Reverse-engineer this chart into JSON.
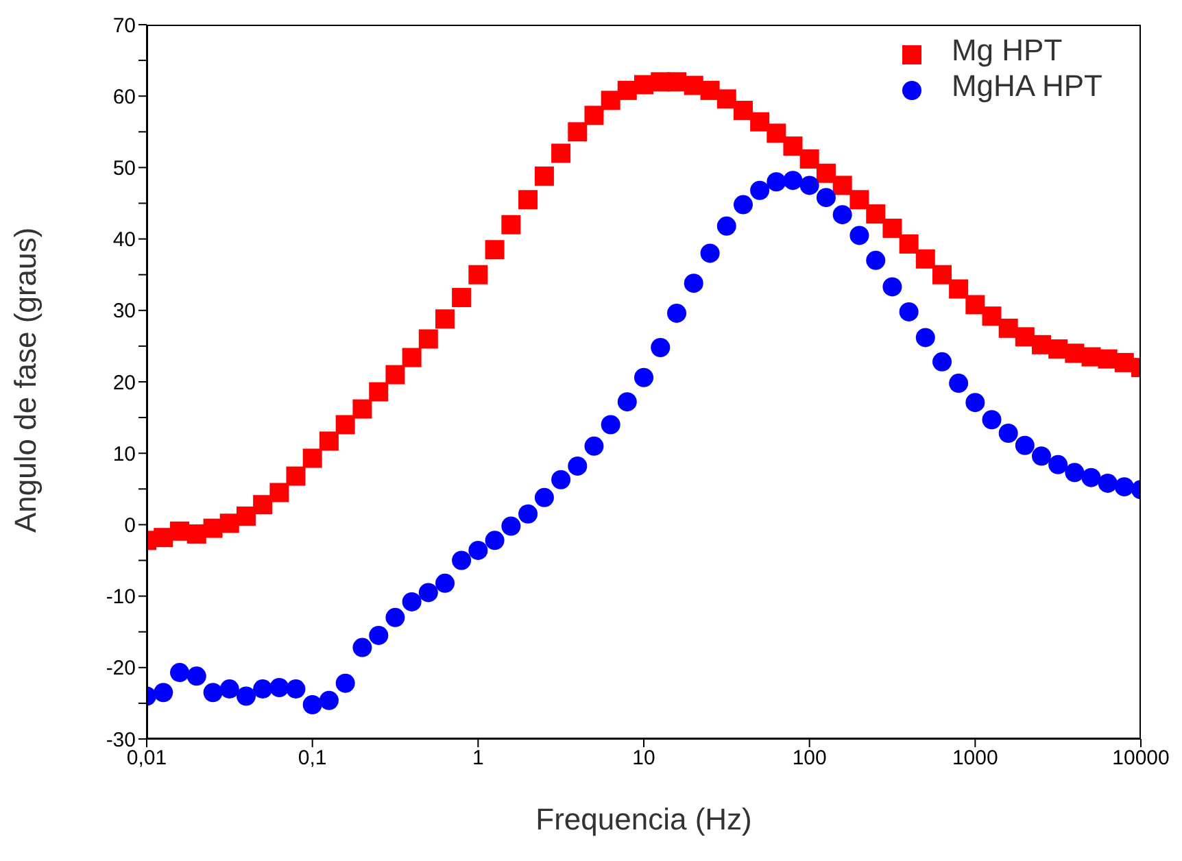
{
  "chart_data": {
    "type": "scatter",
    "xlabel": "Frequencia (Hz)",
    "ylabel": "Angulo de fase (graus)",
    "log": "x",
    "grid": false,
    "legend": "top right",
    "x": [
      0.01,
      0.0126,
      0.0158,
      0.02,
      0.0251,
      0.0316,
      0.0398,
      0.0501,
      0.0631,
      0.0794,
      0.1,
      0.126,
      0.158,
      0.2,
      0.251,
      0.316,
      0.398,
      0.501,
      0.631,
      0.794,
      1,
      1.26,
      1.58,
      2,
      2.51,
      3.16,
      3.98,
      5.01,
      6.31,
      7.94,
      10,
      12.6,
      15.8,
      20,
      25.1,
      31.6,
      39.8,
      50.1,
      63.1,
      79.4,
      100,
      126,
      158,
      200,
      251,
      316,
      398,
      501,
      631,
      794,
      1000,
      1259,
      1585,
      1995,
      2512,
      3162,
      3981,
      5012,
      6310,
      7943,
      10000
    ],
    "xlim": [
      0.01,
      10000
    ],
    "xticks": [
      {
        "value": 0.01,
        "label": "0,01"
      },
      {
        "value": 0.1,
        "label": "0,1"
      },
      1,
      10,
      100,
      1000,
      10000
    ],
    "ylim": [
      -30,
      70
    ],
    "yticks": [
      -30,
      {
        "value": -25,
        "label": null
      },
      -20,
      {
        "value": -15,
        "label": null
      },
      -10,
      {
        "value": -5,
        "label": null
      },
      0,
      {
        "value": 5,
        "label": null
      },
      10,
      {
        "value": 15,
        "label": null
      },
      20,
      {
        "value": 25,
        "label": null
      },
      30,
      {
        "value": 35,
        "label": null
      },
      40,
      {
        "value": 45,
        "label": null
      },
      50,
      {
        "value": 55,
        "label": null
      },
      60,
      {
        "value": 65,
        "label": null
      },
      70
    ],
    "series": [
      {
        "name": "Mg HPT",
        "color": "#ff0000",
        "marker": "square",
        "values": [
          -2.2,
          -1.8,
          -0.9,
          -1.3,
          -0.5,
          0.2,
          1.2,
          2.8,
          4.5,
          6.8,
          9.3,
          11.7,
          14,
          16.2,
          18.6,
          21,
          23.4,
          26,
          28.8,
          31.8,
          35,
          38.5,
          42,
          45.5,
          48.8,
          52,
          55,
          57.3,
          59.4,
          60.8,
          61.6,
          62,
          62,
          61.5,
          60.8,
          59.6,
          58,
          56.4,
          54.8,
          53,
          51.2,
          49.2,
          47.5,
          45.5,
          43.5,
          41.5,
          39.3,
          37.2,
          35,
          33,
          30.8,
          29.2,
          27.5,
          26.3,
          25.2,
          24.6,
          24,
          23.5,
          23.2,
          22.7,
          22
        ]
      },
      {
        "name": "MgHA HPT",
        "color": "#0000ff",
        "marker": "circle",
        "values": [
          -24,
          -23.5,
          -20.7,
          -21.2,
          -23.5,
          -23,
          -24,
          -23,
          -22.8,
          -23,
          -25.2,
          -24.6,
          -22.2,
          -17.2,
          -15.5,
          -13,
          -10.8,
          -9.5,
          -8.2,
          -5,
          -3.6,
          -2.2,
          -0.2,
          1.5,
          3.8,
          6.3,
          8.2,
          11,
          14,
          17.2,
          20.6,
          24.8,
          29.6,
          33.8,
          38,
          41.8,
          44.8,
          46.8,
          48,
          48.2,
          47.5,
          45.8,
          43.4,
          40.5,
          37,
          33.3,
          29.8,
          26.2,
          22.8,
          19.8,
          17.1,
          14.7,
          12.8,
          11.1,
          9.6,
          8.4,
          7.3,
          6.6,
          5.8,
          5.3,
          4.9
        ]
      }
    ]
  }
}
